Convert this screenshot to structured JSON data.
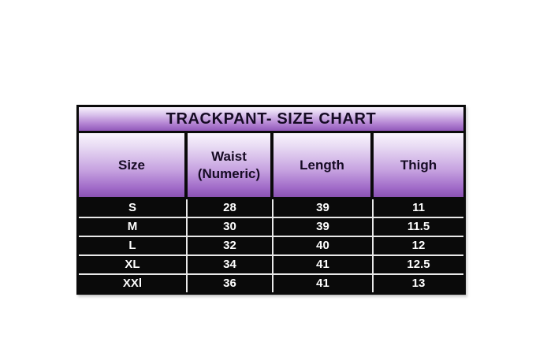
{
  "chart_data": {
    "type": "table",
    "title": "TRACKPANT- SIZE CHART",
    "columns": [
      "Size",
      "Waist (Numeric)",
      "Length",
      "Thigh"
    ],
    "rows": [
      [
        "S",
        "28",
        "39",
        "11"
      ],
      [
        "M",
        "30",
        "39",
        "11.5"
      ],
      [
        "L",
        "32",
        "40",
        "12"
      ],
      [
        "XL",
        "34",
        "41",
        "12.5"
      ],
      [
        "XXl",
        "36",
        "41",
        "13"
      ]
    ]
  },
  "colors": {
    "page_background": "#ffffff",
    "purple_gradient_top": "#f8f4fc",
    "purple_gradient_bottom": "#8a52b2",
    "header_text": "#160b24",
    "data_background": "#0a0a0a",
    "data_text": "#ffffff",
    "separator": "#e9e9e9",
    "border": "#0a0a0a"
  }
}
